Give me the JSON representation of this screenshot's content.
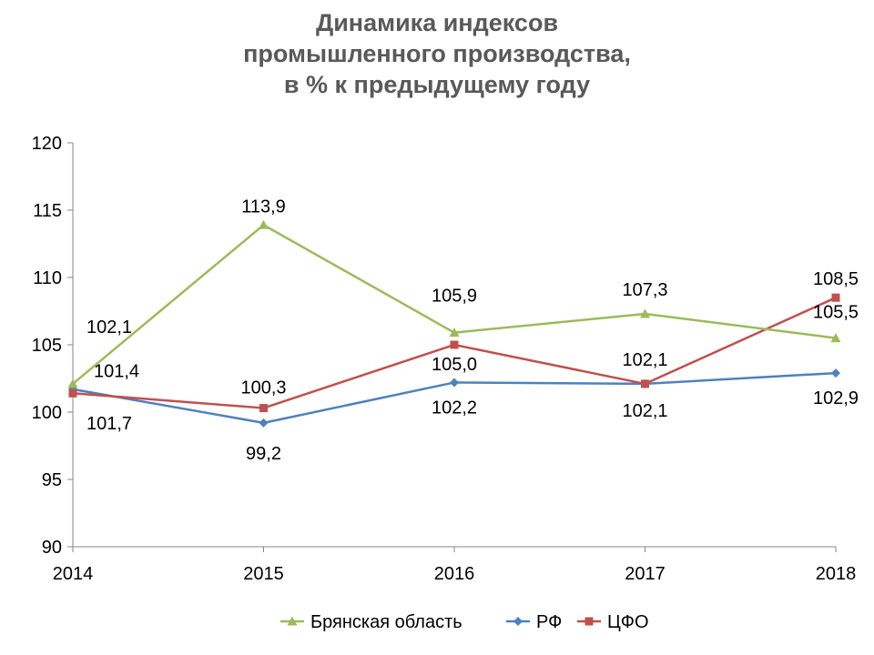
{
  "chart_data": {
    "type": "line",
    "title_lines": [
      "Динамика индексов",
      "промышленного производства,",
      "в % к предыдущему году"
    ],
    "categories": [
      "2014",
      "2015",
      "2016",
      "2017",
      "2018"
    ],
    "ylim": [
      90,
      120
    ],
    "yticks": [
      "90",
      "95",
      "100",
      "105",
      "110",
      "115",
      "120"
    ],
    "grid": false,
    "legend_position": "bottom",
    "series": [
      {
        "name": "Брянская область",
        "color": "#9BBB59",
        "marker": "triangle",
        "values": [
          102.1,
          113.9,
          105.9,
          107.3,
          105.5
        ],
        "labels": [
          "102,1",
          "113,9",
          "105,9",
          "107,3",
          "105,5"
        ]
      },
      {
        "name": "РФ",
        "color": "#4F81BD",
        "marker": "diamond",
        "values": [
          101.7,
          99.2,
          102.2,
          102.1,
          102.9
        ],
        "labels": [
          "101,7",
          "99,2",
          "102,2",
          "102,1",
          "102,9"
        ]
      },
      {
        "name": "ЦФО",
        "color": "#C0504D",
        "marker": "square",
        "values": [
          101.4,
          100.3,
          105.0,
          102.1,
          108.5
        ],
        "labels": [
          "101,4",
          "100,3",
          "105,0",
          "102,1",
          "108,5"
        ]
      }
    ]
  }
}
